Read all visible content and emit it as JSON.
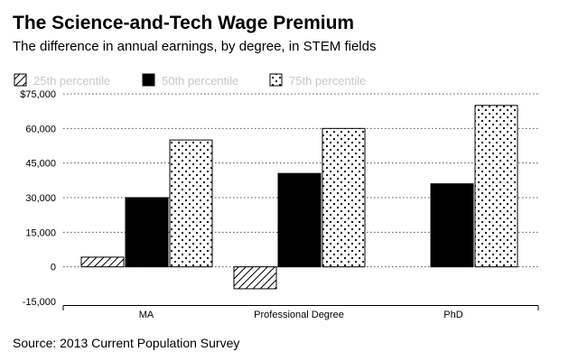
{
  "title": "The Science-and-Tech Wage Premium",
  "subtitle": "The difference in annual earnings, by degree, in STEM fields",
  "source": "Source: 2013 Current Population Survey",
  "chart_data": {
    "type": "bar",
    "categories": [
      "MA",
      "Professional Degree",
      "PhD"
    ],
    "series": [
      {
        "name": "25th percentile",
        "pattern": "hatch",
        "values": [
          4200,
          -9500,
          null
        ]
      },
      {
        "name": "50th percentile",
        "pattern": "solid",
        "values": [
          30000,
          40500,
          36000
        ]
      },
      {
        "name": "75th percentile",
        "pattern": "dots",
        "values": [
          55000,
          60000,
          70000
        ]
      }
    ],
    "yticks": [
      75000,
      60000,
      45000,
      30000,
      15000,
      0,
      -15000
    ],
    "ytick_labels": [
      "$75,000",
      "60,000",
      "45,000",
      "30,000",
      "15,000",
      "0",
      "-15,000"
    ],
    "ylim": [
      -15000,
      75000
    ],
    "legend_position": "top-left",
    "grid": true
  }
}
